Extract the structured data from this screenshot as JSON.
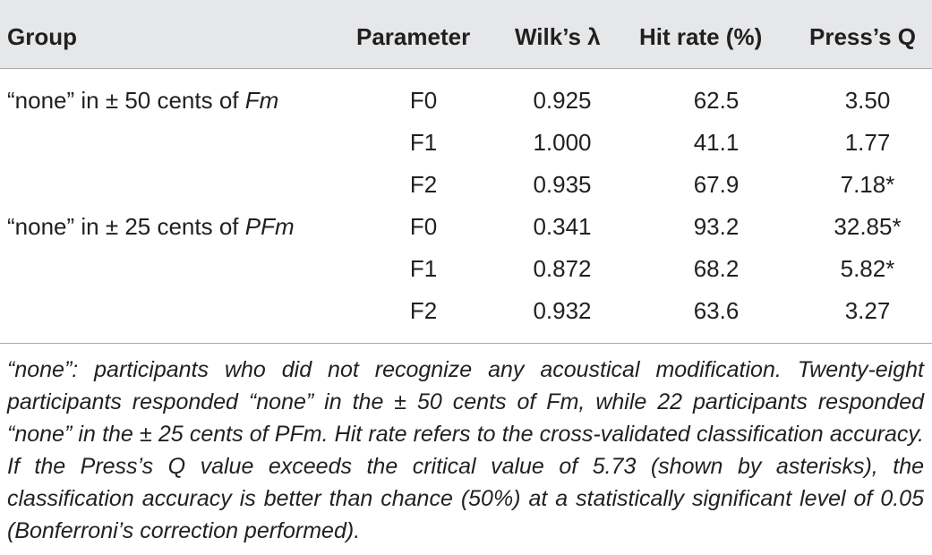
{
  "table": {
    "headers": {
      "group": "Group",
      "parameter": "Parameter",
      "wilks": "Wilk’s λ",
      "hit_rate": "Hit rate (%)",
      "press": "Press’s Q"
    },
    "groups": [
      {
        "label_prefix": "“none” in ± 50 cents of ",
        "label_italic": "Fm",
        "rows": [
          {
            "parameter": "F0",
            "wilks": "0.925",
            "hit_rate": "62.5",
            "press": "3.50"
          },
          {
            "parameter": "F1",
            "wilks": "1.000",
            "hit_rate": "41.1",
            "press": "1.77"
          },
          {
            "parameter": "F2",
            "wilks": "0.935",
            "hit_rate": "67.9",
            "press": "7.18*"
          }
        ]
      },
      {
        "label_prefix": "“none” in ± 25 cents of ",
        "label_italic": "PFm",
        "rows": [
          {
            "parameter": "F0",
            "wilks": "0.341",
            "hit_rate": "93.2",
            "press": "32.85*"
          },
          {
            "parameter": "F1",
            "wilks": "0.872",
            "hit_rate": "68.2",
            "press": "5.82*"
          },
          {
            "parameter": "F2",
            "wilks": "0.932",
            "hit_rate": "63.6",
            "press": "3.27"
          }
        ]
      }
    ]
  },
  "footnote": "“none”: participants who did not recognize any acoustical modification. Twenty-eight participants responded “none” in the ± 50 cents of Fm, while 22 participants responded “none” in the ± 25 cents of PFm. Hit rate refers to the cross-validated classification accuracy. If the Press’s Q value exceeds the critical value of 5.73 (shown by asterisks), the classification accuracy is better than chance (50%) at a statistically significant level of 0.05 (Bonferroni’s correction performed)."
}
